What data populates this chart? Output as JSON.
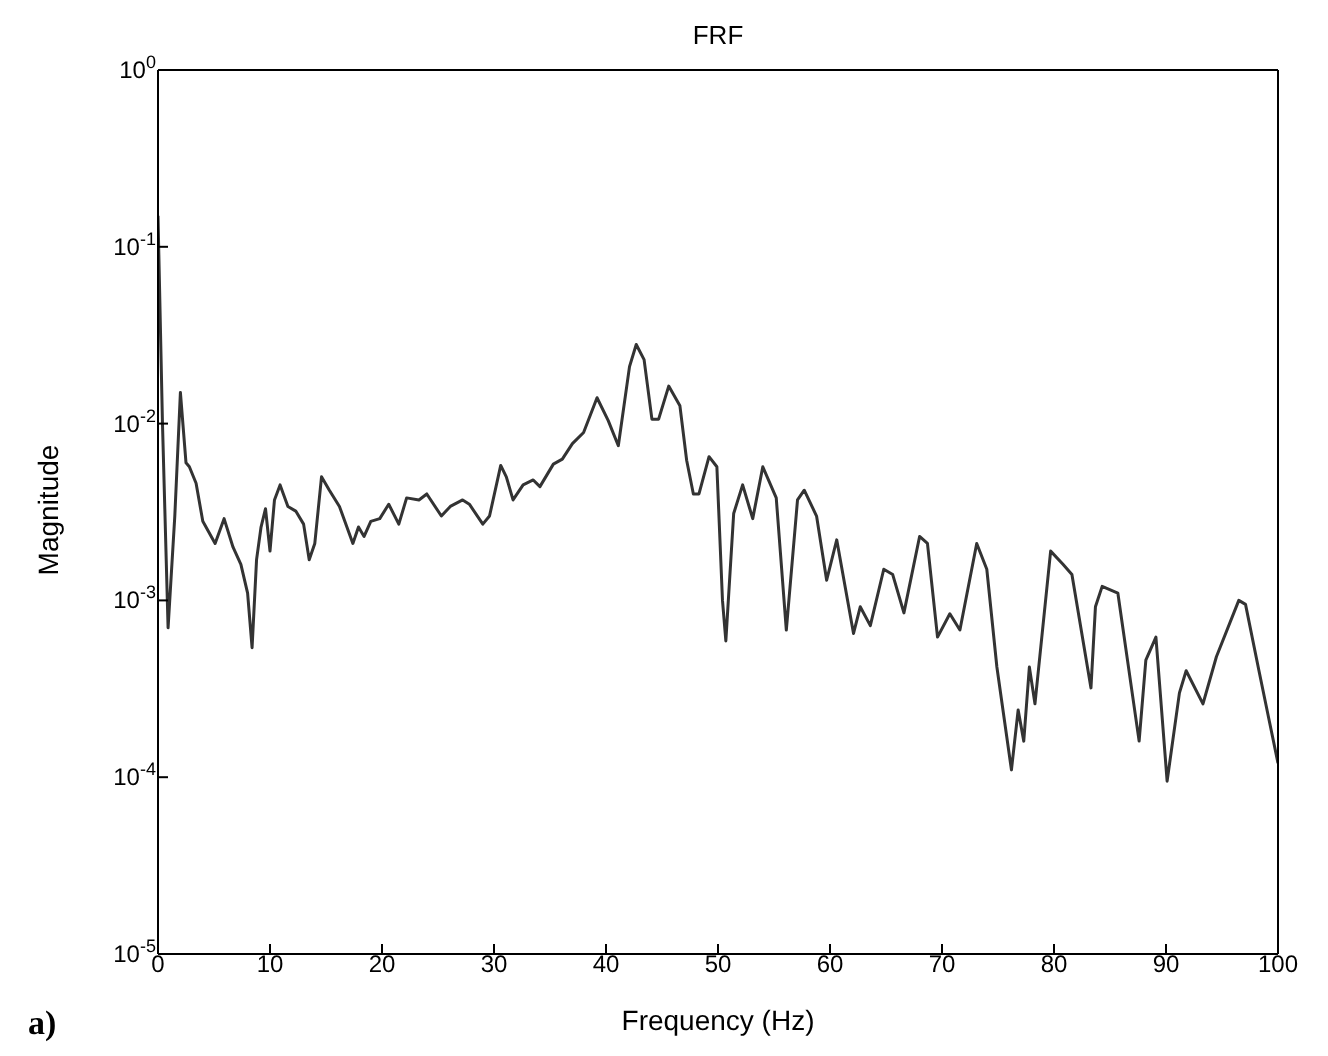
{
  "chart_data": {
    "type": "line",
    "title": "FRF",
    "xlabel": "Frequency (Hz)",
    "ylabel": "Magnitude",
    "annotations": [
      "a)"
    ],
    "log": "y",
    "grid": false,
    "legend": false,
    "marker": "none",
    "line_style": "solid",
    "xlim": [
      0,
      100
    ],
    "xticks": [
      0,
      10,
      20,
      30,
      40,
      50,
      60,
      70,
      80,
      90,
      100
    ],
    "ylim": [
      1e-05,
      1
    ],
    "yticks": [
      {
        "value": 1e-05,
        "label": "10$^{-5}$"
      },
      {
        "value": 0.0001,
        "label": "10$^{-4}$"
      },
      {
        "value": 0.001,
        "label": "10$^{-3}$"
      },
      {
        "value": 0.01,
        "label": "10$^{-2}$"
      },
      {
        "value": 0.1,
        "label": "10$^{-1}$"
      },
      {
        "value": 1,
        "label": "10$^{0}$"
      }
    ],
    "x": [
      0,
      0.4,
      0.9,
      1.5,
      2.0,
      2.5,
      2.8,
      3.4,
      4.0,
      5.1,
      5.9,
      6.7,
      7.4,
      8.0,
      8.4,
      8.8,
      9.2,
      9.6,
      10.0,
      10.4,
      10.9,
      11.6,
      12.3,
      13.0,
      13.5,
      14.0,
      14.6,
      15.3,
      16.2,
      17.4,
      17.9,
      18.4,
      19.0,
      19.8,
      20.6,
      21.5,
      22.2,
      23.3,
      24.0,
      25.3,
      26.1,
      27.2,
      27.8,
      29.0,
      29.6,
      30.6,
      31.1,
      31.7,
      32.6,
      33.5,
      34.1,
      35.3,
      36.1,
      37.0,
      38.0,
      39.2,
      40.2,
      41.1,
      42.1,
      42.7,
      43.4,
      44.1,
      44.7,
      45.6,
      46.6,
      47.2,
      47.8,
      48.3,
      49.2,
      49.9,
      50.4,
      50.7,
      51.4,
      52.2,
      53.1,
      54.0,
      55.2,
      56.1,
      57.1,
      57.7,
      58.8,
      59.7,
      60.6,
      62.1,
      62.7,
      63.6,
      64.8,
      65.6,
      66.6,
      68.0,
      68.7,
      69.6,
      70.7,
      71.6,
      73.1,
      74.0,
      74.9,
      76.2,
      76.8,
      77.3,
      77.8,
      78.3,
      79.7,
      80.8,
      81.6,
      83.3,
      83.7,
      84.3,
      85.7,
      87.6,
      88.2,
      89.1,
      90.1,
      91.2,
      91.8,
      93.3,
      94.5,
      96.5,
      97.1,
      98.3,
      100
    ],
    "series": [
      {
        "color": "#333333",
        "values": [
          0.15,
          0.01,
          0.0007,
          0.003,
          0.015,
          0.006,
          0.0057,
          0.0046,
          0.0028,
          0.0021,
          0.0029,
          0.002,
          0.0016,
          0.0011,
          0.00054,
          0.0017,
          0.0026,
          0.0033,
          0.0019,
          0.0037,
          0.0045,
          0.0034,
          0.0032,
          0.0027,
          0.0017,
          0.0021,
          0.005,
          0.0042,
          0.0034,
          0.0021,
          0.0026,
          0.0023,
          0.0028,
          0.0029,
          0.0035,
          0.0027,
          0.0038,
          0.0037,
          0.004,
          0.003,
          0.0034,
          0.0037,
          0.0035,
          0.0027,
          0.003,
          0.0058,
          0.005,
          0.0037,
          0.0045,
          0.0048,
          0.0044,
          0.0059,
          0.0063,
          0.0077,
          0.0089,
          0.014,
          0.0104,
          0.0075,
          0.021,
          0.028,
          0.023,
          0.0106,
          0.0106,
          0.0163,
          0.0126,
          0.0062,
          0.004,
          0.004,
          0.0065,
          0.0057,
          0.001,
          0.00059,
          0.0031,
          0.0045,
          0.0029,
          0.0057,
          0.0038,
          0.00068,
          0.0037,
          0.0042,
          0.003,
          0.0013,
          0.0022,
          0.00065,
          0.00092,
          0.00072,
          0.0015,
          0.0014,
          0.00085,
          0.0023,
          0.0021,
          0.00062,
          0.00084,
          0.00068,
          0.0021,
          0.0015,
          0.00042,
          0.00011,
          0.00024,
          0.00016,
          0.00042,
          0.00026,
          0.0019,
          0.0016,
          0.0014,
          0.00032,
          0.00092,
          0.0012,
          0.0011,
          0.00016,
          0.00046,
          0.00062,
          9.5e-05,
          0.0003,
          0.0004,
          0.00026,
          0.00048,
          0.001,
          0.00095,
          0.0004,
          0.00012
        ]
      }
    ]
  }
}
